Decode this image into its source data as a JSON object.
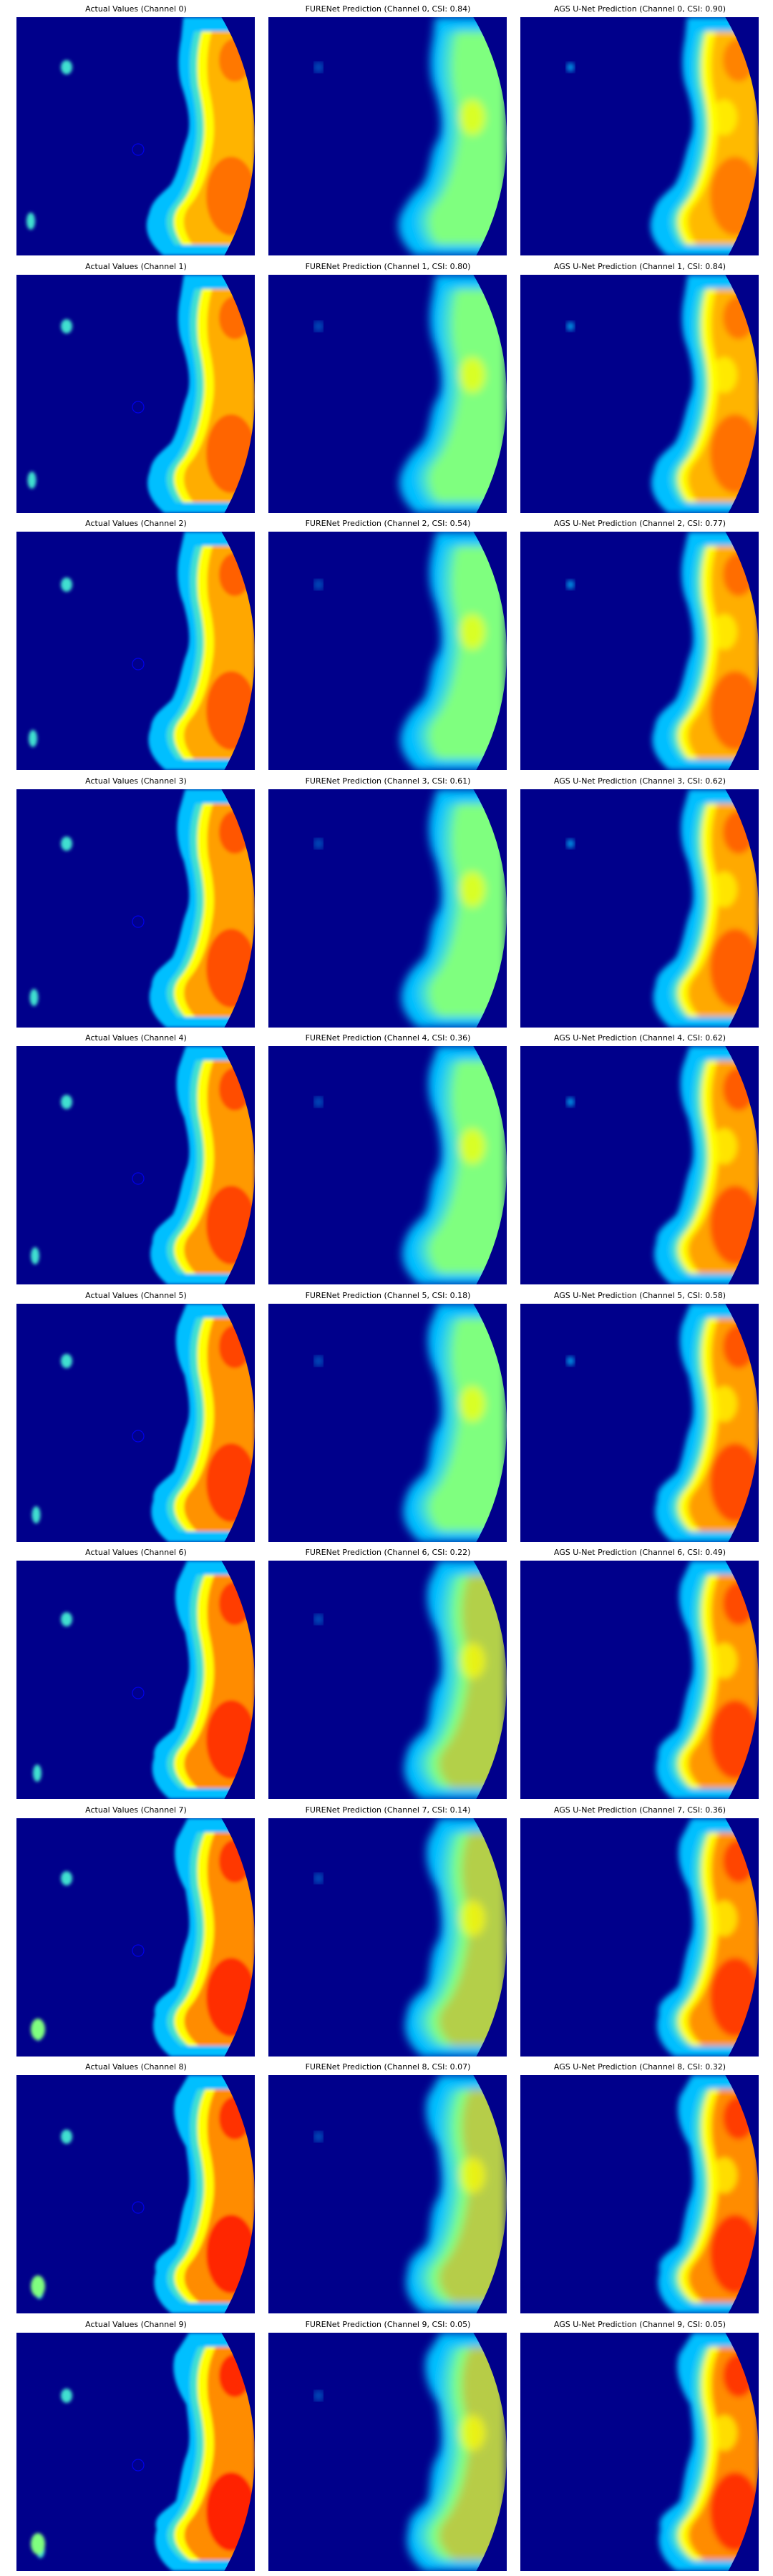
{
  "figure": {
    "colormap": "jet",
    "background_color": "#00008b",
    "palette": {
      "low": "#00008b",
      "blue": "#0000ff",
      "light_blue": "#00bfff",
      "cyan": "#40e0d0",
      "green": "#7fff7f",
      "yellow": "#ffff00",
      "orange": "#ff8c00",
      "red": "#ff2000",
      "dark_red": "#a00000"
    },
    "column_labels": [
      "Actual Values",
      "FURENet Prediction",
      "AGS U-Net Prediction"
    ],
    "rows": [
      {
        "channel": 0,
        "titles": [
          "Actual Values (Channel 0)",
          "FURENet Prediction (Channel 0, CSI: 0.84)",
          "AGS U-Net Prediction (Channel 0, CSI: 0.90)"
        ],
        "furenet_csi": 0.84,
        "agsunet_csi": 0.9
      },
      {
        "channel": 1,
        "titles": [
          "Actual Values (Channel 1)",
          "FURENet Prediction (Channel 1, CSI: 0.80)",
          "AGS U-Net Prediction (Channel 1, CSI: 0.84)"
        ],
        "furenet_csi": 0.8,
        "agsunet_csi": 0.84
      },
      {
        "channel": 2,
        "titles": [
          "Actual Values (Channel 2)",
          "FURENet Prediction (Channel 2, CSI: 0.54)",
          "AGS U-Net Prediction (Channel 2, CSI: 0.77)"
        ],
        "furenet_csi": 0.54,
        "agsunet_csi": 0.77
      },
      {
        "channel": 3,
        "titles": [
          "Actual Values (Channel 3)",
          "FURENet Prediction (Channel 3, CSI: 0.61)",
          "AGS U-Net Prediction (Channel 3, CSI: 0.62)"
        ],
        "furenet_csi": 0.61,
        "agsunet_csi": 0.62
      },
      {
        "channel": 4,
        "titles": [
          "Actual Values (Channel 4)",
          "FURENet Prediction (Channel 4, CSI: 0.36)",
          "AGS U-Net Prediction (Channel 4, CSI: 0.62)"
        ],
        "furenet_csi": 0.36,
        "agsunet_csi": 0.62
      },
      {
        "channel": 5,
        "titles": [
          "Actual Values (Channel 5)",
          "FURENet Prediction (Channel 5, CSI: 0.18)",
          "AGS U-Net Prediction (Channel 5, CSI: 0.58)"
        ],
        "furenet_csi": 0.18,
        "agsunet_csi": 0.58
      },
      {
        "channel": 6,
        "titles": [
          "Actual Values (Channel 6)",
          "FURENet Prediction (Channel 6, CSI: 0.22)",
          "AGS U-Net Prediction (Channel 6, CSI: 0.49)"
        ],
        "furenet_csi": 0.22,
        "agsunet_csi": 0.49
      },
      {
        "channel": 7,
        "titles": [
          "Actual Values (Channel 7)",
          "FURENet Prediction (Channel 7, CSI: 0.14)",
          "AGS U-Net Prediction (Channel 7, CSI: 0.36)"
        ],
        "furenet_csi": 0.14,
        "agsunet_csi": 0.36
      },
      {
        "channel": 8,
        "titles": [
          "Actual Values (Channel 8)",
          "FURENet Prediction (Channel 8, CSI: 0.07)",
          "AGS U-Net Prediction (Channel 8, CSI: 0.32)"
        ],
        "furenet_csi": 0.07,
        "agsunet_csi": 0.32
      },
      {
        "channel": 9,
        "titles": [
          "Actual Values (Channel 9)",
          "FURENet Prediction (Channel 9, CSI: 0.05)",
          "AGS U-Net Prediction (Channel 9, CSI: 0.05)"
        ],
        "furenet_csi": 0.05,
        "agsunet_csi": 0.05
      }
    ]
  }
}
